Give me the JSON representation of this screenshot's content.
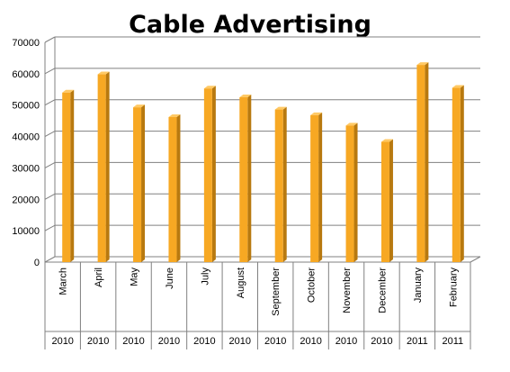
{
  "colors": {
    "bar_front": "#F7A823",
    "bar_side": "#B8790F",
    "bar_top": "#FFC964",
    "grid": "#808080",
    "axis": "#808080"
  },
  "chart_data": {
    "type": "bar",
    "title": "Cable Advertising",
    "xlabel": "",
    "ylabel": "",
    "ylim": [
      0,
      70000
    ],
    "yticks": [
      0,
      10000,
      20000,
      30000,
      40000,
      50000,
      60000,
      70000
    ],
    "grid": true,
    "legend": "none",
    "style": "3d-column",
    "categories": [
      "March",
      "April",
      "May",
      "June",
      "July",
      "August",
      "September",
      "October",
      "November",
      "December",
      "January",
      "February"
    ],
    "years": [
      "2010",
      "2010",
      "2010",
      "2010",
      "2010",
      "2010",
      "2010",
      "2010",
      "2010",
      "2010",
      "2011",
      "2011"
    ],
    "values": [
      54000,
      59800,
      49300,
      46200,
      55300,
      52500,
      48600,
      46800,
      43500,
      38300,
      62800,
      55500
    ]
  }
}
